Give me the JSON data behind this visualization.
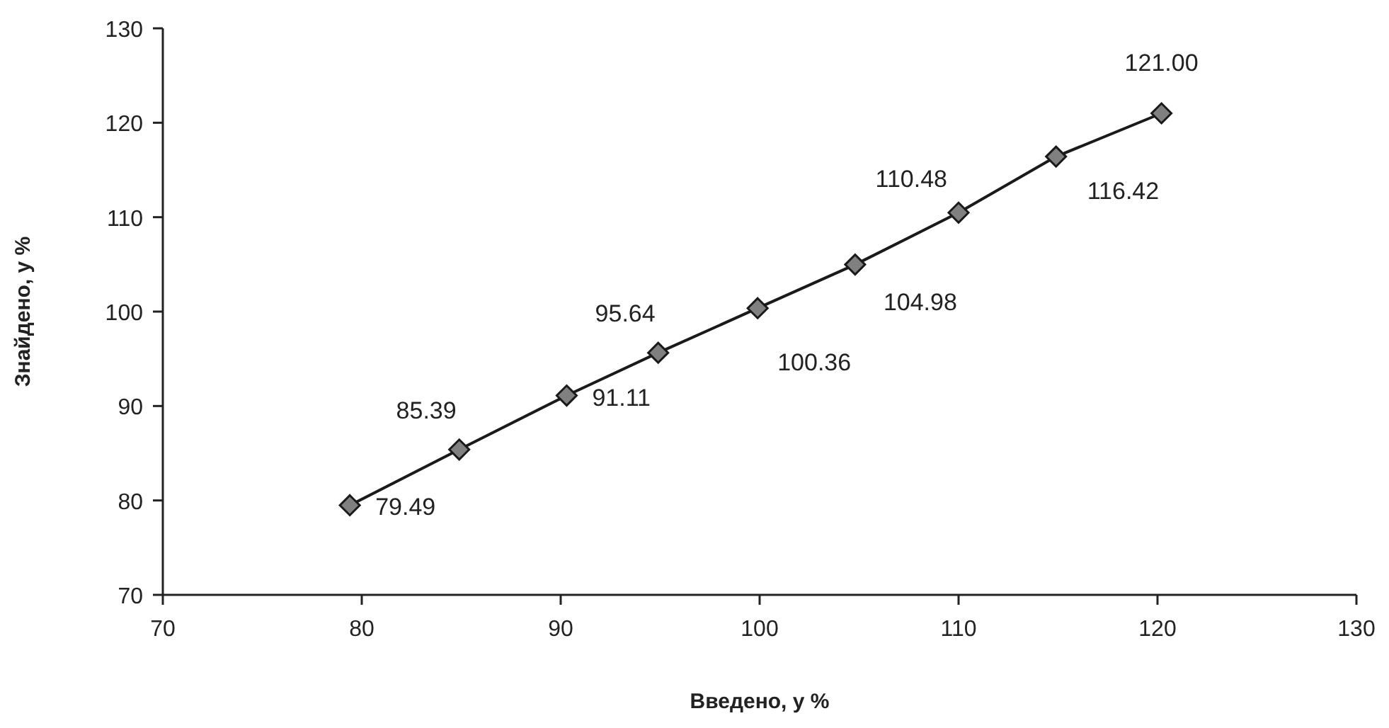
{
  "chart_data": {
    "type": "line",
    "xlabel": "Введено, у %",
    "ylabel": "Знайдено, у %",
    "x": [
      79.4,
      84.9,
      90.3,
      94.9,
      99.9,
      104.8,
      110.0,
      114.9,
      120.2
    ],
    "series": [
      {
        "color": "#808080",
        "values": [
          79.49,
          85.39,
          91.11,
          95.64,
          100.36,
          104.98,
          110.48,
          116.42,
          121.0
        ],
        "value_labels": [
          "79.49",
          "85.39",
          "91.11",
          "95.64",
          "100.36",
          "104.98",
          "110.48",
          "116.42",
          "121.00"
        ]
      }
    ],
    "xlim": [
      70,
      130
    ],
    "xticks": [
      70,
      80,
      90,
      100,
      110,
      120,
      130
    ],
    "ylim": [
      70,
      130
    ],
    "yticks": [
      70,
      80,
      90,
      100,
      110,
      120,
      130
    ],
    "marker": "diamond",
    "line_style": "solid"
  }
}
